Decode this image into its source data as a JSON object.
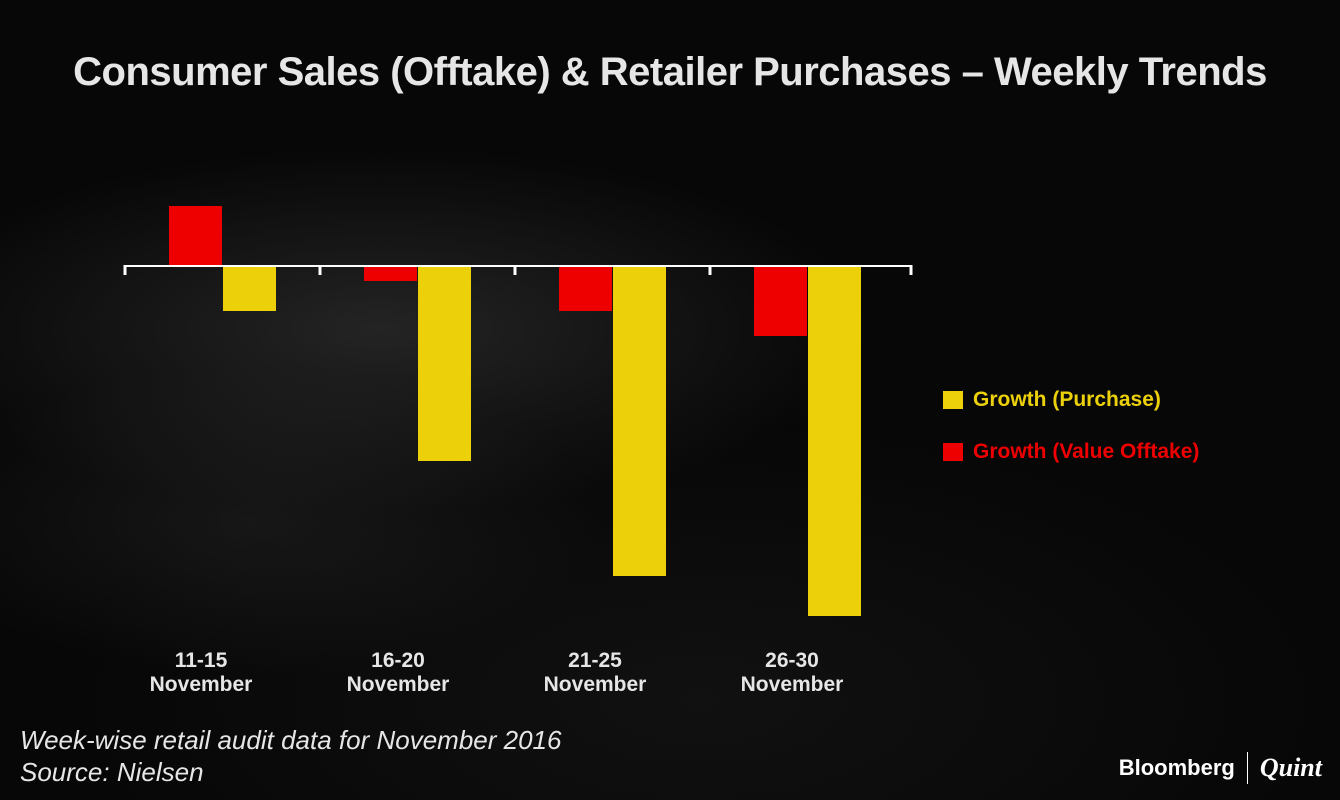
{
  "title": "Consumer Sales (Offtake) & Retailer Purchases – Weekly Trends",
  "footer": {
    "line1": "Week-wise retail audit data for November 2016",
    "line2": "Source: Nielsen"
  },
  "brand": {
    "name1": "Bloomberg",
    "name2": "Quint"
  },
  "colors": {
    "purchase": "#ecd10a",
    "offtake": "#ee0000",
    "axis": "#ffffff",
    "text": "#e6e6e6"
  },
  "chart_data": {
    "type": "bar",
    "categories": [
      [
        "11-15",
        "November"
      ],
      [
        "16-20",
        "November"
      ],
      [
        "21-25",
        "November"
      ],
      [
        "26-30",
        "November"
      ]
    ],
    "series": [
      {
        "name": "Growth (Value Offtake)",
        "values": [
          6.0,
          -1.5,
          -4.5,
          -7.0
        ]
      },
      {
        "name": "Growth (Purchase)",
        "values": [
          -4.5,
          -19.5,
          -31.0,
          -35.0
        ]
      }
    ],
    "ylim": [
      -36,
      8
    ],
    "legend_position": "right",
    "grid": false
  }
}
